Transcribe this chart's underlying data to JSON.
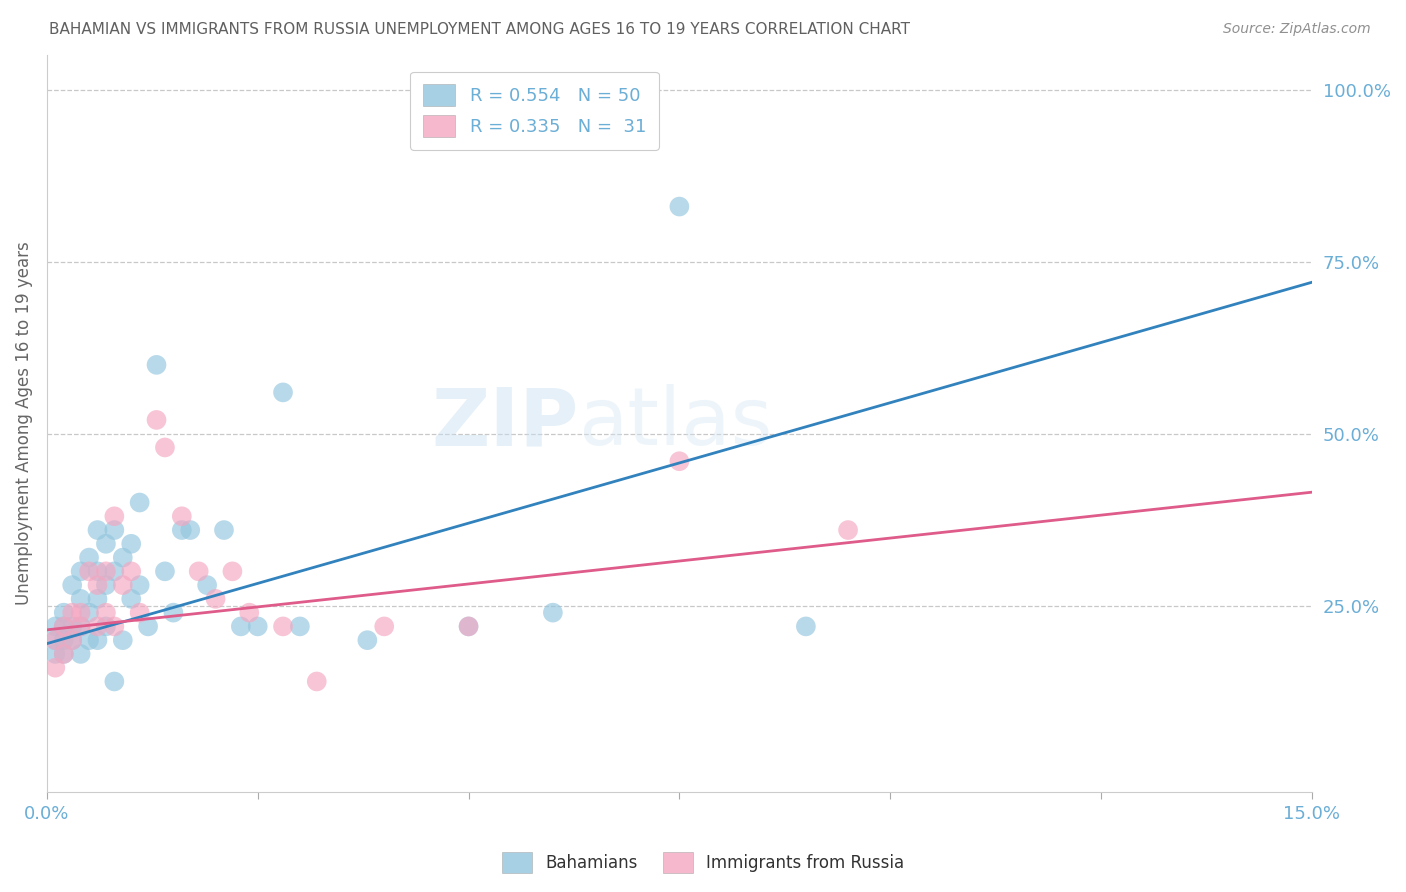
{
  "title": "BAHAMIAN VS IMMIGRANTS FROM RUSSIA UNEMPLOYMENT AMONG AGES 16 TO 19 YEARS CORRELATION CHART",
  "source": "Source: ZipAtlas.com",
  "ylabel": "Unemployment Among Ages 16 to 19 years",
  "xlim": [
    0.0,
    0.15
  ],
  "ylim": [
    -0.02,
    1.05
  ],
  "legend_r1_r": "0.554",
  "legend_r1_n": "50",
  "legend_r2_r": "0.335",
  "legend_r2_n": "31",
  "blue_color": "#92c5de",
  "pink_color": "#f4a6c0",
  "line_blue": "#3182bd",
  "line_pink": "#de5b8a",
  "axis_tick_color": "#6baed6",
  "grid_color": "#c8c8c8",
  "title_color": "#606060",
  "source_color": "#909090",
  "watermark_text": "ZIPatlas",
  "watermark_color": "#d8eaf5",
  "bahamians_x": [
    0.001,
    0.001,
    0.001,
    0.002,
    0.002,
    0.002,
    0.002,
    0.003,
    0.003,
    0.003,
    0.004,
    0.004,
    0.004,
    0.004,
    0.005,
    0.005,
    0.005,
    0.006,
    0.006,
    0.006,
    0.006,
    0.007,
    0.007,
    0.007,
    0.008,
    0.008,
    0.008,
    0.009,
    0.009,
    0.01,
    0.01,
    0.011,
    0.011,
    0.012,
    0.013,
    0.014,
    0.015,
    0.016,
    0.017,
    0.019,
    0.021,
    0.023,
    0.025,
    0.028,
    0.03,
    0.038,
    0.05,
    0.06,
    0.075,
    0.09
  ],
  "bahamians_y": [
    0.2,
    0.22,
    0.18,
    0.24,
    0.2,
    0.22,
    0.18,
    0.28,
    0.22,
    0.2,
    0.3,
    0.26,
    0.22,
    0.18,
    0.32,
    0.24,
    0.2,
    0.36,
    0.3,
    0.26,
    0.2,
    0.34,
    0.28,
    0.22,
    0.36,
    0.3,
    0.14,
    0.32,
    0.2,
    0.34,
    0.26,
    0.4,
    0.28,
    0.22,
    0.6,
    0.3,
    0.24,
    0.36,
    0.36,
    0.28,
    0.36,
    0.22,
    0.22,
    0.56,
    0.22,
    0.2,
    0.22,
    0.24,
    0.83,
    0.22
  ],
  "russia_x": [
    0.001,
    0.001,
    0.002,
    0.002,
    0.003,
    0.003,
    0.004,
    0.004,
    0.005,
    0.006,
    0.006,
    0.007,
    0.007,
    0.008,
    0.008,
    0.009,
    0.01,
    0.011,
    0.013,
    0.014,
    0.016,
    0.018,
    0.02,
    0.022,
    0.024,
    0.028,
    0.032,
    0.04,
    0.05,
    0.075,
    0.095
  ],
  "russia_y": [
    0.2,
    0.16,
    0.22,
    0.18,
    0.24,
    0.2,
    0.24,
    0.22,
    0.3,
    0.28,
    0.22,
    0.3,
    0.24,
    0.38,
    0.22,
    0.28,
    0.3,
    0.24,
    0.52,
    0.48,
    0.38,
    0.3,
    0.26,
    0.3,
    0.24,
    0.22,
    0.14,
    0.22,
    0.22,
    0.46,
    0.36
  ]
}
